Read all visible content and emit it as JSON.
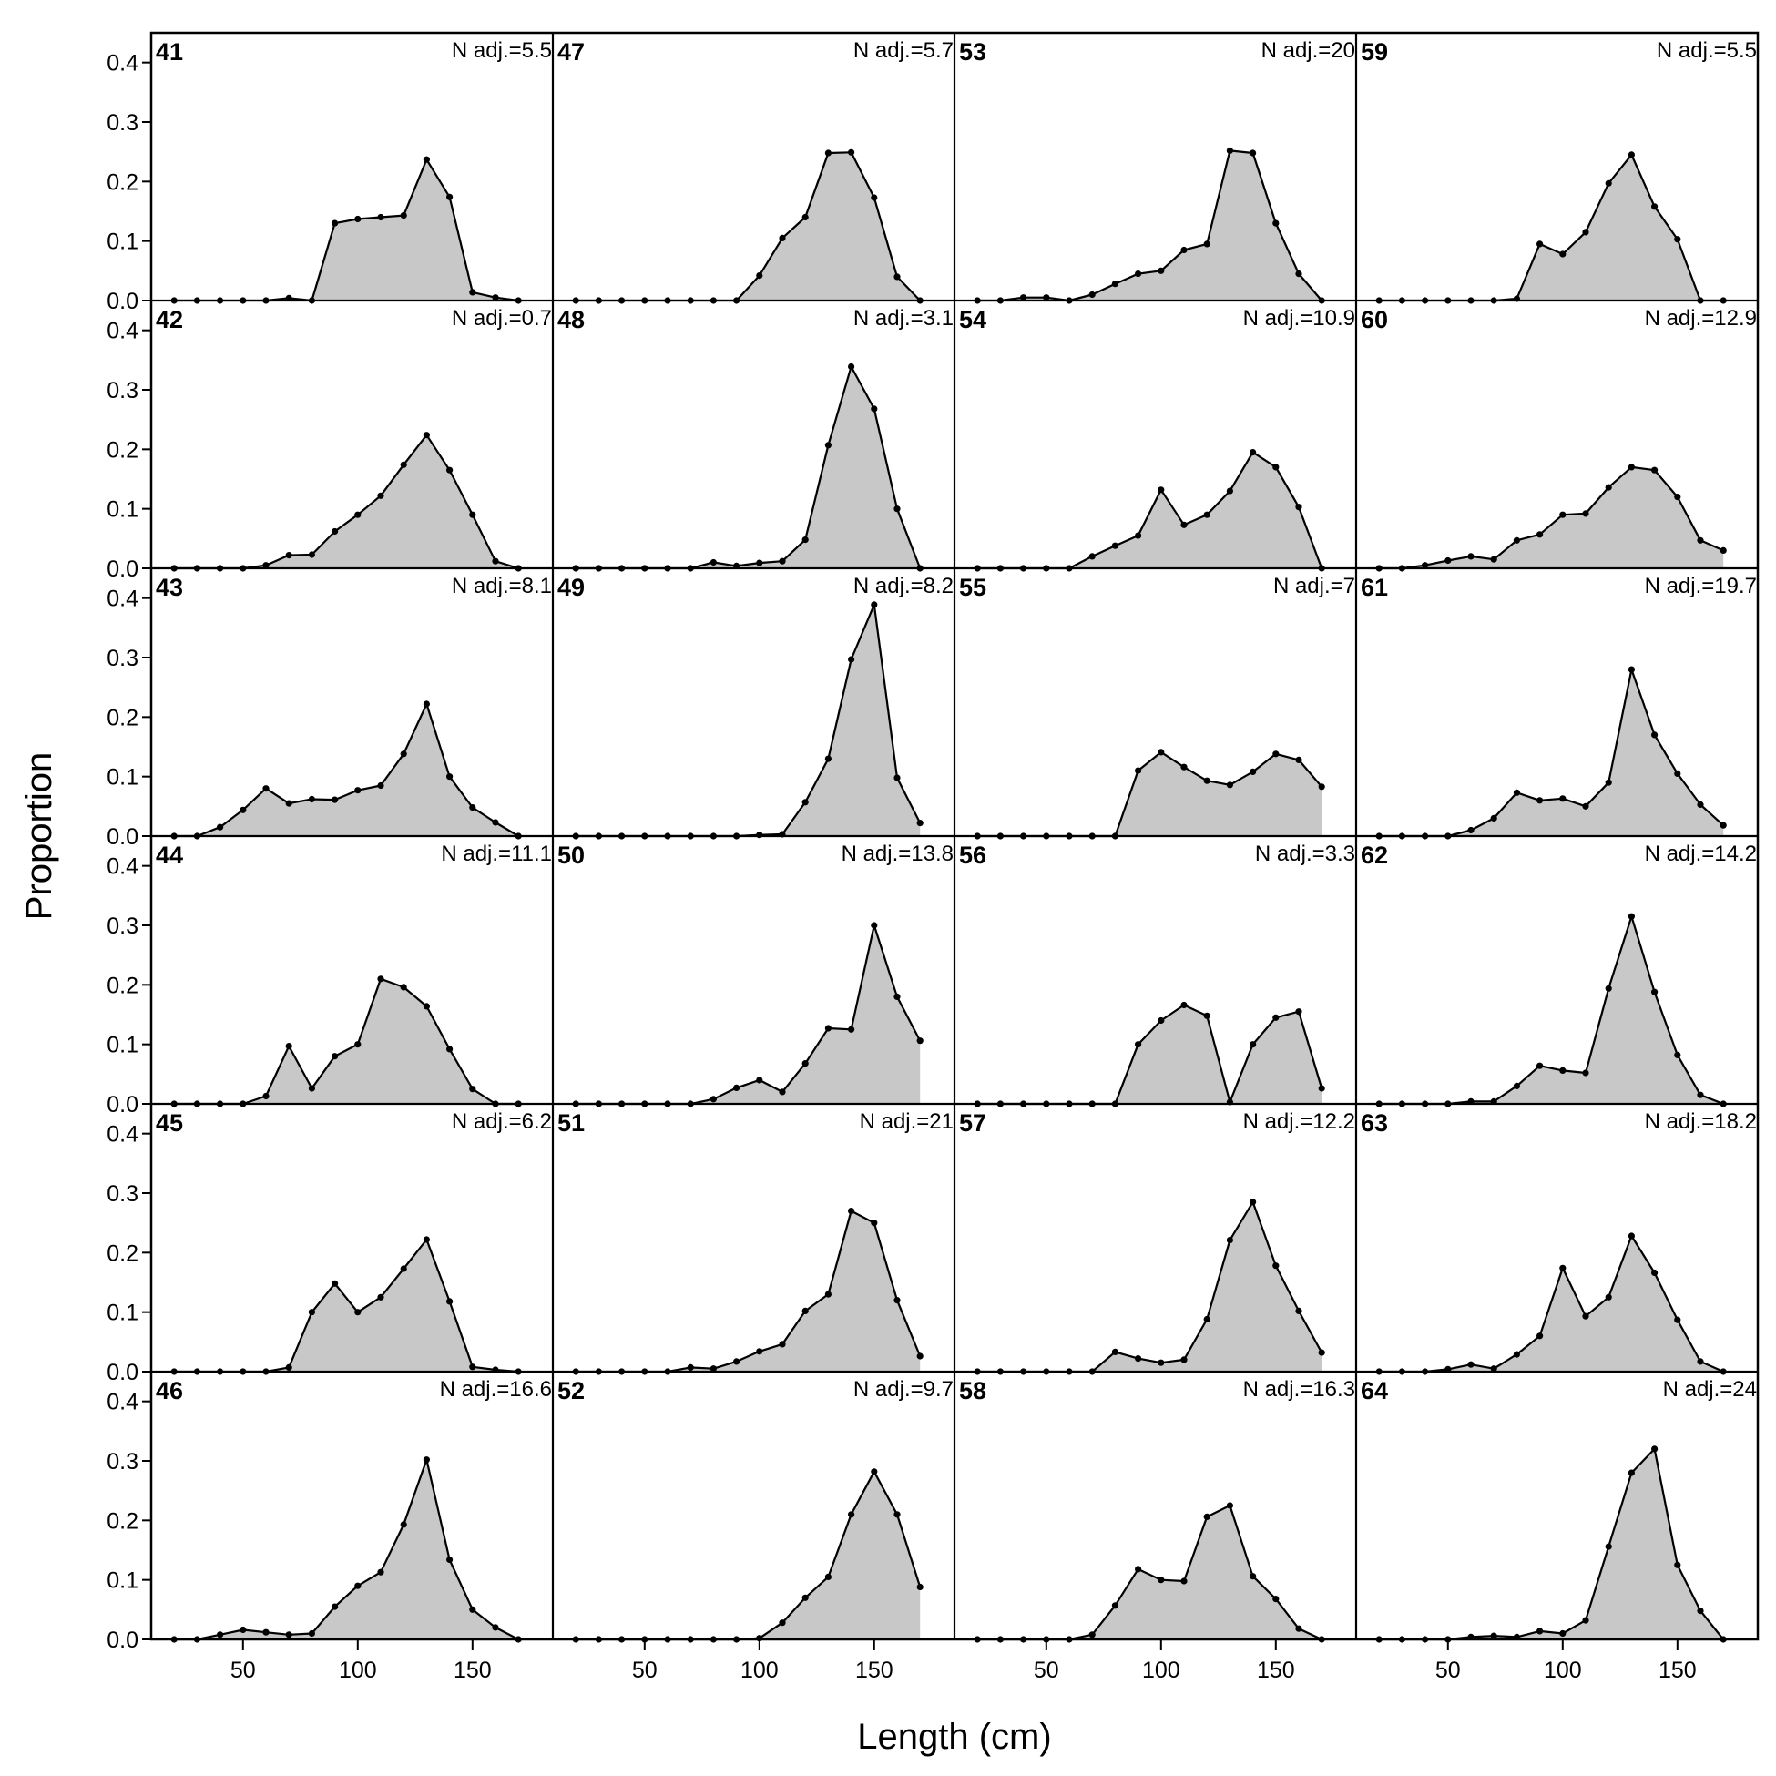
{
  "chart_data": {
    "type": "area",
    "xlabel": "Length (cm)",
    "ylabel": "Proportion",
    "layout": {
      "rows": 6,
      "cols": 4
    },
    "xlim": [
      10,
      185
    ],
    "ylim": [
      0,
      0.45
    ],
    "x_ticks": [
      50,
      100,
      150
    ],
    "y_ticks": [
      0.0,
      0.1,
      0.2,
      0.3,
      0.4
    ],
    "y_tick_labels": [
      "0.0",
      "0.1",
      "0.2",
      "0.3",
      "0.4"
    ],
    "x_tick_labels": [
      "50",
      "100",
      "150"
    ],
    "x": [
      20,
      30,
      40,
      50,
      60,
      70,
      80,
      90,
      100,
      110,
      120,
      130,
      140,
      150,
      160,
      170
    ],
    "fill_color": "#c8c8c8",
    "line_color": "#000000",
    "panels": [
      {
        "id": "41",
        "n_label": "N adj.=5.5",
        "values": [
          0,
          0,
          0,
          0,
          0,
          0.004,
          0,
          0.13,
          0.137,
          0.14,
          0.143,
          0.237,
          0.174,
          0.014,
          0.005,
          0
        ]
      },
      {
        "id": "42",
        "n_label": "N adj.=0.7",
        "values": [
          0,
          0,
          0,
          0,
          0.005,
          0.022,
          0.023,
          0.062,
          0.09,
          0.122,
          0.174,
          0.224,
          0.165,
          0.09,
          0.012,
          0
        ]
      },
      {
        "id": "43",
        "n_label": "N adj.=8.1",
        "values": [
          0,
          0,
          0.015,
          0.044,
          0.08,
          0.055,
          0.062,
          0.061,
          0.077,
          0.085,
          0.138,
          0.222,
          0.1,
          0.048,
          0.023,
          0
        ]
      },
      {
        "id": "44",
        "n_label": "N adj.=11.1",
        "values": [
          0,
          0,
          0,
          0,
          0.013,
          0.097,
          0.026,
          0.08,
          0.1,
          0.21,
          0.196,
          0.164,
          0.092,
          0.025,
          0,
          0
        ]
      },
      {
        "id": "45",
        "n_label": "N adj.=6.2",
        "values": [
          0,
          0,
          0,
          0,
          0,
          0.007,
          0.1,
          0.148,
          0.1,
          0.125,
          0.173,
          0.222,
          0.118,
          0.008,
          0.003,
          0
        ]
      },
      {
        "id": "46",
        "n_label": "N adj.=16.6",
        "values": [
          0,
          0,
          0.008,
          0.016,
          0.012,
          0.008,
          0.01,
          0.055,
          0.09,
          0.113,
          0.193,
          0.302,
          0.134,
          0.05,
          0.02,
          0
        ]
      },
      {
        "id": "47",
        "n_label": "N adj.=5.7",
        "values": [
          0,
          0,
          0,
          0,
          0,
          0,
          0,
          0,
          0.042,
          0.105,
          0.14,
          0.248,
          0.249,
          0.173,
          0.04,
          0
        ]
      },
      {
        "id": "48",
        "n_label": "N adj.=3.1",
        "values": [
          0,
          0,
          0,
          0,
          0,
          0,
          0.01,
          0.004,
          0.009,
          0.012,
          0.048,
          0.207,
          0.339,
          0.268,
          0.1,
          0
        ]
      },
      {
        "id": "49",
        "n_label": "N adj.=8.2",
        "values": [
          0,
          0,
          0,
          0,
          0,
          0,
          0,
          0,
          0.002,
          0.003,
          0.057,
          0.13,
          0.297,
          0.389,
          0.098,
          0.022
        ]
      },
      {
        "id": "50",
        "n_label": "N adj.=13.8",
        "values": [
          0,
          0,
          0,
          0,
          0,
          0,
          0.008,
          0.027,
          0.04,
          0.02,
          0.068,
          0.127,
          0.125,
          0.3,
          0.18,
          0.106
        ]
      },
      {
        "id": "51",
        "n_label": "N adj.=21",
        "values": [
          0,
          0,
          0,
          0,
          0,
          0.007,
          0.005,
          0.017,
          0.034,
          0.046,
          0.102,
          0.13,
          0.27,
          0.25,
          0.12,
          0.026
        ]
      },
      {
        "id": "52",
        "n_label": "N adj.=9.7",
        "values": [
          0,
          0,
          0,
          0,
          0,
          0,
          0,
          0,
          0.002,
          0.028,
          0.07,
          0.105,
          0.21,
          0.282,
          0.21,
          0.088
        ]
      },
      {
        "id": "53",
        "n_label": "N adj.=20",
        "values": [
          0,
          0,
          0.005,
          0.005,
          0,
          0.01,
          0.028,
          0.045,
          0.05,
          0.085,
          0.095,
          0.252,
          0.248,
          0.13,
          0.045,
          0
        ]
      },
      {
        "id": "54",
        "n_label": "N adj.=10.9",
        "values": [
          0,
          0,
          0,
          0,
          0,
          0.02,
          0.038,
          0.055,
          0.132,
          0.073,
          0.09,
          0.13,
          0.195,
          0.17,
          0.103,
          0
        ]
      },
      {
        "id": "55",
        "n_label": "N adj.=7",
        "values": [
          0,
          0,
          0,
          0,
          0,
          0,
          0,
          0.11,
          0.141,
          0.116,
          0.093,
          0.086,
          0.108,
          0.138,
          0.128,
          0.083
        ]
      },
      {
        "id": "56",
        "n_label": "N adj.=3.3",
        "values": [
          0,
          0,
          0,
          0,
          0,
          0,
          0,
          0.1,
          0.14,
          0.166,
          0.148,
          0.003,
          0.1,
          0.145,
          0.155,
          0.026
        ]
      },
      {
        "id": "57",
        "n_label": "N adj.=12.2",
        "values": [
          0,
          0,
          0,
          0,
          0,
          0,
          0.033,
          0.022,
          0.015,
          0.02,
          0.088,
          0.221,
          0.285,
          0.178,
          0.102,
          0.032
        ]
      },
      {
        "id": "58",
        "n_label": "N adj.=16.3",
        "values": [
          0,
          0,
          0,
          0,
          0,
          0.008,
          0.057,
          0.118,
          0.1,
          0.098,
          0.206,
          0.225,
          0.106,
          0.068,
          0.018,
          0
        ]
      },
      {
        "id": "59",
        "n_label": "N adj.=5.5",
        "values": [
          0,
          0,
          0,
          0,
          0,
          0,
          0.003,
          0.095,
          0.078,
          0.115,
          0.197,
          0.245,
          0.158,
          0.103,
          0,
          0
        ]
      },
      {
        "id": "60",
        "n_label": "N adj.=12.9",
        "values": [
          0,
          0,
          0.005,
          0.013,
          0.02,
          0.015,
          0.047,
          0.057,
          0.09,
          0.092,
          0.136,
          0.17,
          0.165,
          0.12,
          0.047,
          0.03
        ]
      },
      {
        "id": "61",
        "n_label": "N adj.=19.7",
        "values": [
          0,
          0,
          0,
          0,
          0.01,
          0.03,
          0.073,
          0.06,
          0.063,
          0.05,
          0.09,
          0.28,
          0.17,
          0.105,
          0.053,
          0.018
        ]
      },
      {
        "id": "62",
        "n_label": "N adj.=14.2",
        "values": [
          0,
          0,
          0,
          0,
          0.004,
          0.004,
          0.03,
          0.064,
          0.056,
          0.052,
          0.194,
          0.315,
          0.188,
          0.082,
          0.015,
          0
        ]
      },
      {
        "id": "63",
        "n_label": "N adj.=18.2",
        "values": [
          0,
          0,
          0,
          0.004,
          0.012,
          0.005,
          0.029,
          0.06,
          0.174,
          0.093,
          0.125,
          0.228,
          0.166,
          0.087,
          0.017,
          0
        ]
      },
      {
        "id": "64",
        "n_label": "N adj.=24",
        "values": [
          0,
          0,
          0,
          0,
          0.004,
          0.006,
          0.004,
          0.014,
          0.01,
          0.032,
          0.156,
          0.28,
          0.32,
          0.125,
          0.048,
          0
        ]
      }
    ]
  }
}
